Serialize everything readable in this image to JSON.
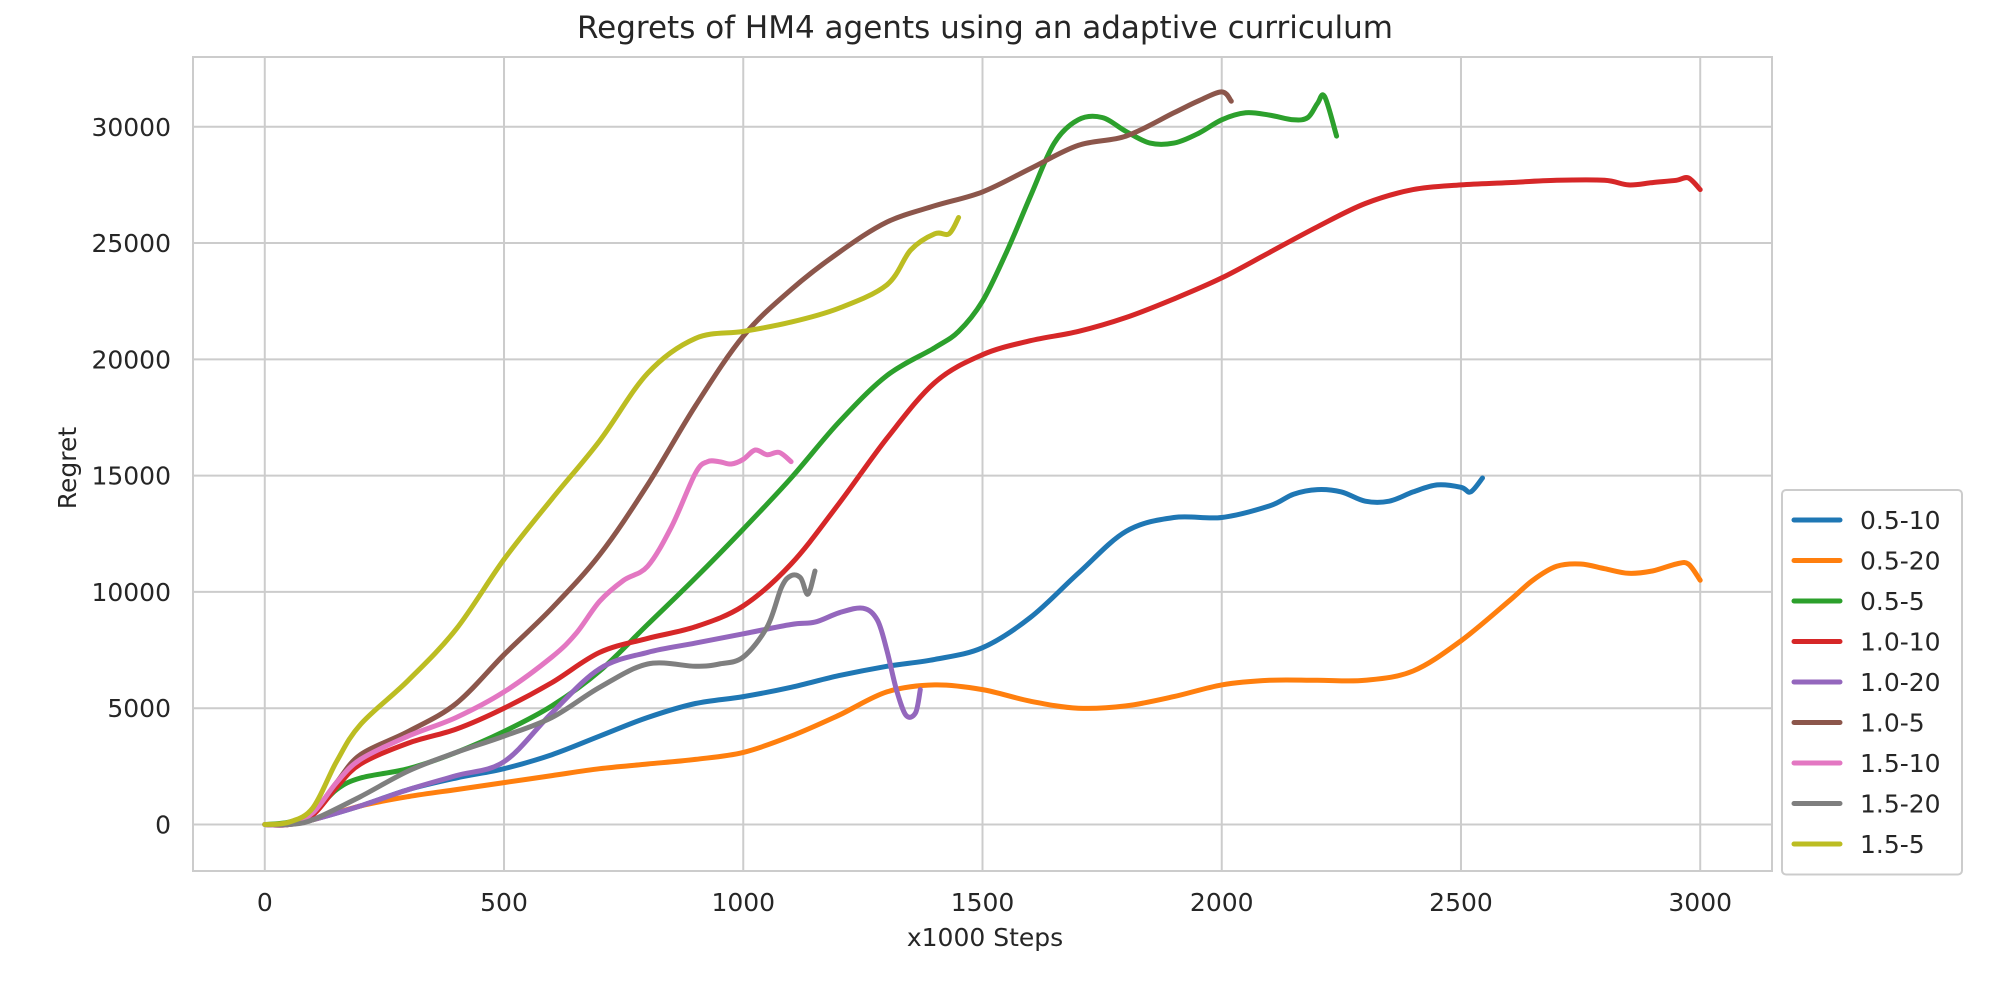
{
  "chart_data": {
    "type": "line",
    "title": "Regrets of HM4 agents using an adaptive curriculum",
    "xlabel": "x1000 Steps",
    "ylabel": "Regret",
    "xlim": [
      -150,
      3150
    ],
    "ylim": [
      -2000,
      33000
    ],
    "xticks": [
      0,
      500,
      1000,
      1500,
      2000,
      2500,
      3000
    ],
    "yticks": [
      0,
      5000,
      10000,
      15000,
      20000,
      25000,
      30000
    ],
    "xtick_labels": [
      "0",
      "500",
      "1000",
      "1500",
      "2000",
      "2500",
      "3000"
    ],
    "ytick_labels": [
      "0",
      "5000",
      "10000",
      "15000",
      "20000",
      "25000",
      "30000"
    ],
    "grid": true,
    "legend_position": "lower-right, outside plot",
    "series": [
      {
        "name": "0.5-10",
        "color": "#1f77b4",
        "x": [
          0,
          50,
          100,
          200,
          300,
          400,
          500,
          600,
          700,
          800,
          900,
          1000,
          1100,
          1200,
          1300,
          1400,
          1500,
          1600,
          1700,
          1800,
          1900,
          2000,
          2100,
          2150,
          2200,
          2250,
          2300,
          2350,
          2400,
          2450,
          2500,
          2520,
          2545
        ],
        "y": [
          0,
          0,
          200,
          800,
          1500,
          2000,
          2400,
          3000,
          3800,
          4600,
          5200,
          5500,
          5900,
          6400,
          6800,
          7100,
          7600,
          8900,
          10800,
          12600,
          13200,
          13200,
          13700,
          14200,
          14400,
          14300,
          13900,
          13900,
          14300,
          14600,
          14500,
          14300,
          14900
        ]
      },
      {
        "name": "0.5-20",
        "color": "#ff7f0e",
        "x": [
          0,
          50,
          100,
          200,
          300,
          400,
          500,
          600,
          700,
          800,
          900,
          1000,
          1100,
          1200,
          1300,
          1400,
          1500,
          1600,
          1700,
          1800,
          1900,
          2000,
          2100,
          2200,
          2300,
          2400,
          2500,
          2600,
          2650,
          2700,
          2750,
          2800,
          2850,
          2900,
          2950,
          2975,
          3000
        ],
        "y": [
          0,
          0,
          200,
          800,
          1200,
          1500,
          1800,
          2100,
          2400,
          2600,
          2800,
          3100,
          3800,
          4700,
          5700,
          6000,
          5800,
          5300,
          5000,
          5100,
          5500,
          6000,
          6200,
          6200,
          6200,
          6600,
          7900,
          9600,
          10500,
          11100,
          11200,
          11000,
          10800,
          10900,
          11200,
          11200,
          10500
        ]
      },
      {
        "name": "0.5-5",
        "color": "#2ca02c",
        "x": [
          0,
          50,
          100,
          150,
          200,
          300,
          400,
          500,
          600,
          700,
          800,
          900,
          1000,
          1100,
          1200,
          1300,
          1400,
          1450,
          1500,
          1550,
          1600,
          1650,
          1700,
          1750,
          1800,
          1850,
          1900,
          1950,
          2000,
          2050,
          2100,
          2150,
          2180,
          2200,
          2215,
          2240
        ],
        "y": [
          0,
          100,
          500,
          1500,
          2000,
          2400,
          3100,
          4000,
          5100,
          6600,
          8600,
          10600,
          12700,
          14900,
          17300,
          19300,
          20500,
          21200,
          22500,
          24600,
          27000,
          29300,
          30300,
          30400,
          29800,
          29300,
          29300,
          29700,
          30300,
          30600,
          30500,
          30300,
          30400,
          31000,
          31300,
          29600
        ]
      },
      {
        "name": "1.0-10",
        "color": "#d62728",
        "x": [
          0,
          50,
          100,
          150,
          200,
          300,
          400,
          500,
          600,
          700,
          800,
          900,
          1000,
          1100,
          1200,
          1300,
          1400,
          1500,
          1600,
          1700,
          1800,
          1900,
          2000,
          2100,
          2200,
          2300,
          2400,
          2500,
          2600,
          2700,
          2800,
          2850,
          2900,
          2950,
          2975,
          3000
        ],
        "y": [
          0,
          0,
          400,
          1600,
          2600,
          3500,
          4100,
          5000,
          6100,
          7400,
          8000,
          8500,
          9400,
          11200,
          13800,
          16600,
          19000,
          20200,
          20800,
          21200,
          21800,
          22600,
          23500,
          24600,
          25700,
          26700,
          27300,
          27500,
          27600,
          27700,
          27700,
          27500,
          27600,
          27700,
          27800,
          27300
        ]
      },
      {
        "name": "1.0-20",
        "color": "#9467bd",
        "x": [
          0,
          50,
          100,
          200,
          300,
          400,
          500,
          600,
          700,
          800,
          900,
          1000,
          1100,
          1150,
          1200,
          1250,
          1280,
          1300,
          1320,
          1340,
          1360,
          1370
        ],
        "y": [
          0,
          0,
          200,
          800,
          1500,
          2100,
          2700,
          4800,
          6700,
          7400,
          7800,
          8200,
          8600,
          8700,
          9100,
          9300,
          8800,
          7500,
          5800,
          4700,
          4800,
          5800
        ]
      },
      {
        "name": "1.0-5",
        "color": "#8c564b",
        "x": [
          0,
          50,
          100,
          150,
          200,
          300,
          400,
          500,
          600,
          700,
          800,
          900,
          1000,
          1100,
          1200,
          1300,
          1400,
          1500,
          1600,
          1700,
          1800,
          1900,
          1950,
          2000,
          2020
        ],
        "y": [
          0,
          0,
          500,
          1800,
          3000,
          4000,
          5200,
          7300,
          9300,
          11600,
          14600,
          18000,
          21000,
          23000,
          24600,
          25900,
          26600,
          27200,
          28200,
          29200,
          29600,
          30600,
          31100,
          31500,
          31100
        ]
      },
      {
        "name": "1.5-10",
        "color": "#e377c2",
        "x": [
          0,
          50,
          100,
          150,
          200,
          300,
          400,
          500,
          600,
          650,
          700,
          750,
          800,
          850,
          900,
          925,
          950,
          975,
          1000,
          1025,
          1050,
          1075,
          1100
        ],
        "y": [
          0,
          0,
          500,
          1800,
          2800,
          3800,
          4600,
          5700,
          7200,
          8200,
          9600,
          10500,
          11100,
          12800,
          15100,
          15600,
          15600,
          15500,
          15700,
          16100,
          15900,
          16000,
          15600
        ]
      },
      {
        "name": "1.5-20",
        "color": "#7f7f7f",
        "x": [
          0,
          50,
          100,
          200,
          300,
          400,
          500,
          600,
          700,
          800,
          900,
          950,
          1000,
          1050,
          1080,
          1100,
          1120,
          1135,
          1150
        ],
        "y": [
          0,
          0,
          200,
          1200,
          2300,
          3100,
          3800,
          4600,
          5900,
          6900,
          6800,
          6900,
          7200,
          8500,
          10200,
          10700,
          10600,
          9900,
          10900
        ]
      },
      {
        "name": "1.5-5",
        "color": "#bcbd22",
        "x": [
          0,
          50,
          100,
          150,
          200,
          300,
          400,
          500,
          600,
          700,
          800,
          900,
          1000,
          1100,
          1200,
          1300,
          1350,
          1400,
          1430,
          1450
        ],
        "y": [
          0,
          100,
          700,
          2700,
          4300,
          6200,
          8400,
          11400,
          14000,
          16500,
          19400,
          20900,
          21200,
          21600,
          22200,
          23200,
          24700,
          25400,
          25400,
          26100
        ]
      }
    ]
  }
}
